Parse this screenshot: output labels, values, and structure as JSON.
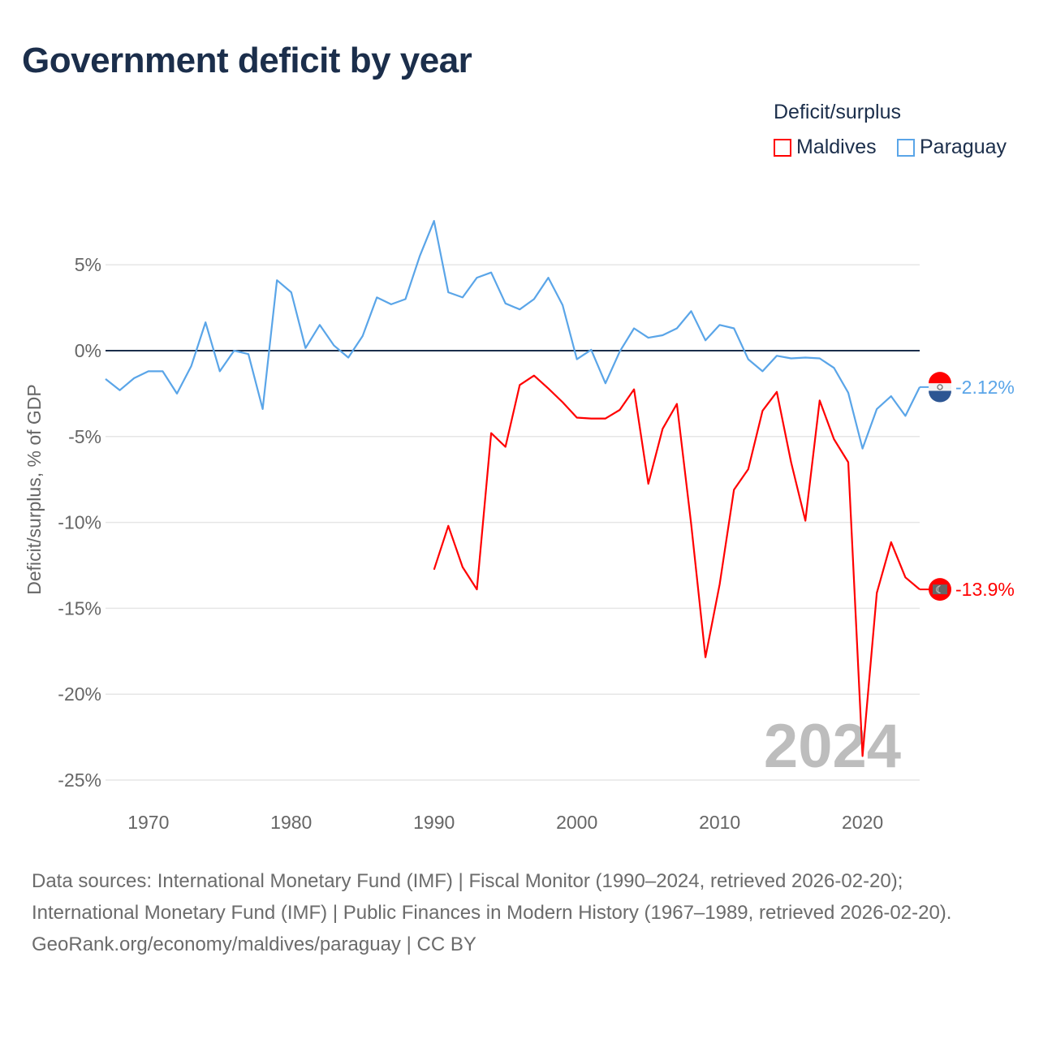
{
  "title": "Government deficit by year",
  "legend": {
    "title": "Deficit/surplus",
    "items": [
      {
        "name": "Maldives",
        "color": "#ff0000"
      },
      {
        "name": "Paraguay",
        "color": "#5aa5e8"
      }
    ]
  },
  "footer": {
    "sources": "Data sources: International Monetary Fund (IMF) | Fiscal Monitor (1990–2024, retrieved 2026-02-20); International Monetary Fund (IMF) | Public Finances in Modern History (1967–1989, retrieved 2026-02-20).",
    "credit": "GeoRank.org/economy/maldives/paraguay | CC BY"
  },
  "chart_data": {
    "type": "line",
    "title": "Government deficit by year",
    "ylabel": "Deficit/surplus, % of GDP",
    "xlabel": "",
    "xlim": [
      1967,
      2024
    ],
    "ylim": [
      -26,
      8.5
    ],
    "x_ticks": [
      1970,
      1980,
      1990,
      2000,
      2010,
      2020
    ],
    "y_ticks": [
      5,
      0,
      -5,
      -10,
      -15,
      -20,
      -25
    ],
    "y_tick_labels": [
      "5%",
      "0%",
      "-5%",
      "-10%",
      "-15%",
      "-20%",
      "-25%"
    ],
    "grid": true,
    "year_watermark": "2024",
    "series": [
      {
        "name": "Paraguay",
        "color": "#5aa5e8",
        "end_label": "-2.12%",
        "start_year": 1967,
        "values": [
          -1.65,
          -2.3,
          -1.6,
          -1.2,
          -1.2,
          -2.5,
          -0.9,
          1.65,
          -1.2,
          0,
          -0.2,
          -3.4,
          4.1,
          3.4,
          0.15,
          1.5,
          0.3,
          -0.4,
          0.85,
          3.1,
          2.7,
          3.0,
          5.5,
          7.55,
          3.4,
          3.1,
          4.25,
          4.55,
          2.75,
          2.4,
          3.0,
          4.25,
          2.65,
          -0.5,
          0.05,
          -1.9,
          -0.05,
          1.3,
          0.75,
          0.9,
          1.3,
          2.3,
          0.6,
          1.5,
          1.3,
          -0.5,
          -1.2,
          -0.3,
          -0.45,
          -0.4,
          -0.45,
          -1.0,
          -2.45,
          -5.7,
          -3.4,
          -2.65,
          -3.8,
          -2.12
        ]
      },
      {
        "name": "Maldives",
        "color": "#ff0000",
        "end_label": "-13.9%",
        "start_year": 1990,
        "values": [
          -12.75,
          -10.2,
          -12.6,
          -13.9,
          -4.8,
          -5.6,
          -2.0,
          -1.45,
          -2.2,
          -3.0,
          -3.9,
          -3.95,
          -3.95,
          -3.45,
          -2.25,
          -7.75,
          -4.55,
          -3.1,
          -10.1,
          -17.85,
          -13.6,
          -8.1,
          -6.9,
          -3.5,
          -2.4,
          -6.5,
          -9.9,
          -2.9,
          -5.15,
          -6.5,
          -23.6,
          -14.1,
          -11.15,
          -13.2,
          -13.9
        ]
      }
    ]
  }
}
